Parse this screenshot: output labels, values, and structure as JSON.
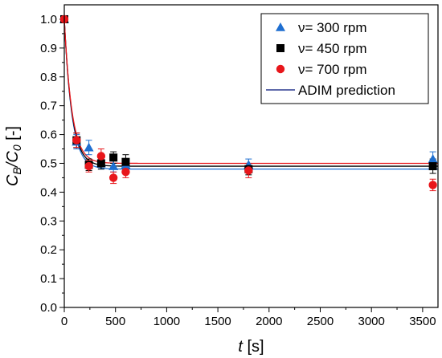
{
  "chart_data": {
    "type": "scatter",
    "title": "",
    "xlabel": {
      "var": "t",
      "unit": " [s]"
    },
    "ylabel": {
      "main": "C",
      "sub1": "B",
      "slash": "/C",
      "sub2": "0",
      "unit": " [-]"
    },
    "xlim": [
      0,
      3650
    ],
    "ylim": [
      0.0,
      1.05
    ],
    "xticks": [
      0,
      500,
      1000,
      1500,
      2000,
      2500,
      3000,
      3500
    ],
    "yticks": [
      0.0,
      0.1,
      0.2,
      0.3,
      0.4,
      0.5,
      0.6,
      0.7,
      0.8,
      0.9,
      1.0
    ],
    "xtick_labels": [
      "0",
      "500",
      "1000",
      "1500",
      "2000",
      "2500",
      "3000",
      "3500"
    ],
    "ytick_labels": [
      "0.0",
      "0.1",
      "0.2",
      "0.3",
      "0.4",
      "0.5",
      "0.6",
      "0.7",
      "0.8",
      "0.9",
      "1.0"
    ],
    "grid": false,
    "legend_position": "top-right",
    "series": [
      {
        "name": "ν= 300 rpm",
        "marker": "triangle",
        "color": "#1f6fd1",
        "points": [
          {
            "x": 0,
            "y": 1.0,
            "err": 0.0
          },
          {
            "x": 120,
            "y": 0.575,
            "err": 0.025
          },
          {
            "x": 240,
            "y": 0.555,
            "err": 0.025
          },
          {
            "x": 360,
            "y": 0.5,
            "err": 0.02
          },
          {
            "x": 480,
            "y": 0.49,
            "err": 0.02
          },
          {
            "x": 600,
            "y": 0.495,
            "err": 0.02
          },
          {
            "x": 1800,
            "y": 0.495,
            "err": 0.02
          },
          {
            "x": 3600,
            "y": 0.515,
            "err": 0.025
          }
        ]
      },
      {
        "name": "ν= 450 rpm",
        "marker": "square",
        "color": "#000000",
        "points": [
          {
            "x": 0,
            "y": 1.0,
            "err": 0.0
          },
          {
            "x": 120,
            "y": 0.58,
            "err": 0.025
          },
          {
            "x": 240,
            "y": 0.495,
            "err": 0.02
          },
          {
            "x": 360,
            "y": 0.5,
            "err": 0.02
          },
          {
            "x": 480,
            "y": 0.52,
            "err": 0.02
          },
          {
            "x": 600,
            "y": 0.505,
            "err": 0.025
          },
          {
            "x": 1800,
            "y": 0.48,
            "err": 0.02
          },
          {
            "x": 3600,
            "y": 0.49,
            "err": 0.025
          }
        ]
      },
      {
        "name": "ν= 700 rpm",
        "marker": "circle",
        "color": "#e8161b",
        "points": [
          {
            "x": 0,
            "y": 1.0,
            "err": 0.0
          },
          {
            "x": 120,
            "y": 0.58,
            "err": 0.025
          },
          {
            "x": 240,
            "y": 0.49,
            "err": 0.02
          },
          {
            "x": 360,
            "y": 0.525,
            "err": 0.025
          },
          {
            "x": 480,
            "y": 0.45,
            "err": 0.02
          },
          {
            "x": 600,
            "y": 0.47,
            "err": 0.02
          },
          {
            "x": 1800,
            "y": 0.475,
            "err": 0.025
          },
          {
            "x": 3600,
            "y": 0.425,
            "err": 0.02
          }
        ]
      }
    ],
    "model_curves": [
      {
        "color": "#1f6fd1",
        "plateau": 0.48,
        "initial": 1.0,
        "rate_per_s": 0.0135
      },
      {
        "color": "#000000",
        "plateau": 0.49,
        "initial": 1.0,
        "rate_per_s": 0.0135
      },
      {
        "color": "#e8161b",
        "plateau": 0.5,
        "initial": 1.0,
        "rate_per_s": 0.0135
      }
    ],
    "model_legend": {
      "name": "ADIM prediction",
      "color": "#2b3a8f"
    }
  }
}
